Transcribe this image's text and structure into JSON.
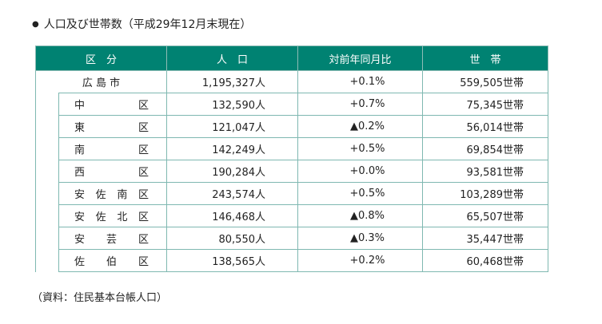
{
  "heading": {
    "bullet": "●",
    "text": "人口及び世帯数（平成29年12月末現在）"
  },
  "table": {
    "headers": [
      "区　分",
      "人　口",
      "対前年同月比",
      "世　帯"
    ],
    "city": {
      "name": "広 島 市",
      "population": "1,195,327人",
      "change": "+0.1%",
      "households": "559,505世帯"
    },
    "wards": [
      {
        "name": [
          "中",
          "区"
        ],
        "population": "132,590人",
        "change": "+0.7%",
        "households": "75,345世帯"
      },
      {
        "name": [
          "東",
          "区"
        ],
        "population": "121,047人",
        "change": "▲0.2%",
        "households": "56,014世帯"
      },
      {
        "name": [
          "南",
          "区"
        ],
        "population": "142,249人",
        "change": "+0.5%",
        "households": "69,854世帯"
      },
      {
        "name": [
          "西",
          "区"
        ],
        "population": "190,284人",
        "change": "+0.0%",
        "households": "93,581世帯"
      },
      {
        "name": [
          "安",
          "佐",
          "南",
          "区"
        ],
        "population": "243,574人",
        "change": "+0.5%",
        "households": "103,289世帯"
      },
      {
        "name": [
          "安",
          "佐",
          "北",
          "区"
        ],
        "population": "146,468人",
        "change": "▲0.8%",
        "households": "65,507世帯"
      },
      {
        "name": [
          "安",
          "芸",
          "区"
        ],
        "population": "80,550人",
        "change": "▲0.3%",
        "households": "35,447世帯"
      },
      {
        "name": [
          "佐",
          "伯",
          "区"
        ],
        "population": "138,565人",
        "change": "+0.2%",
        "households": "60,468世帯"
      }
    ]
  },
  "source": "（資料：住民基本台帳人口）"
}
